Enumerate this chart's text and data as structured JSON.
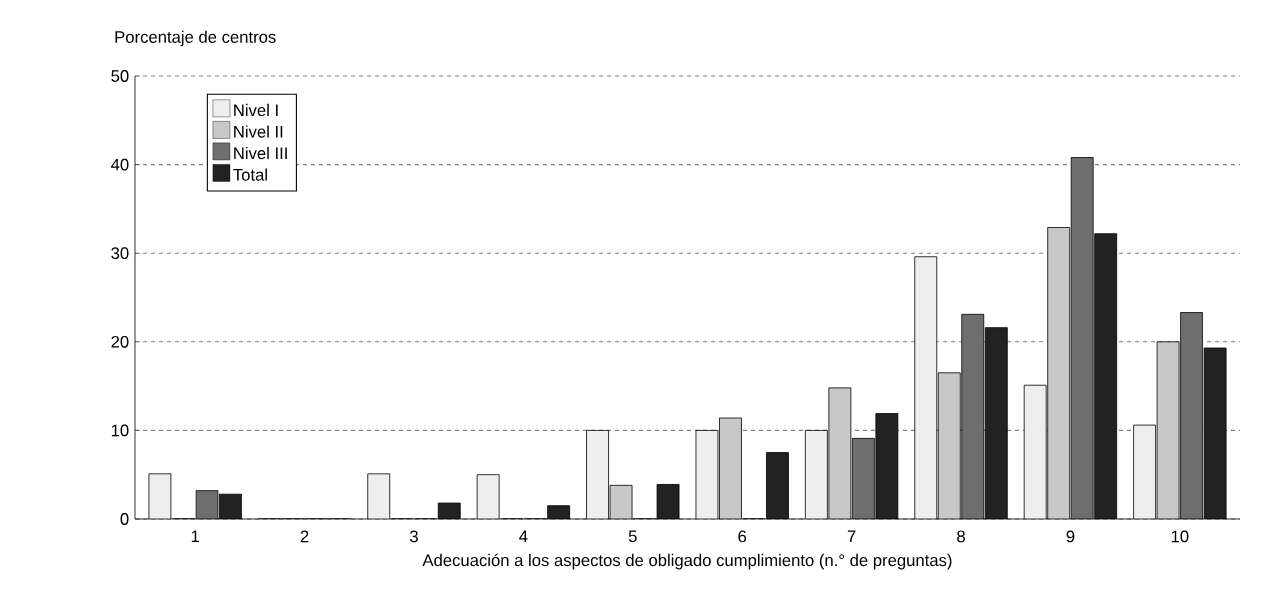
{
  "chart_data": {
    "type": "bar",
    "ylabel": "Porcentaje de centros",
    "xlabel": "Adecuación a los aspectos de obligado cumplimiento (n.° de preguntas)",
    "categories": [
      "1",
      "2",
      "3",
      "4",
      "5",
      "6",
      "7",
      "8",
      "9",
      "10"
    ],
    "series": [
      {
        "name": "Nivel I",
        "color": "#eeeeee",
        "values": [
          5.1,
          0,
          5.1,
          5,
          10,
          10,
          10,
          29.6,
          15.1,
          10.6
        ]
      },
      {
        "name": "Nivel II",
        "color": "#c8c8c8",
        "values": [
          0,
          0,
          0,
          0,
          3.8,
          11.4,
          14.8,
          16.5,
          32.9,
          20
        ]
      },
      {
        "name": "Nivel III",
        "color": "#6e6e6e",
        "values": [
          3.2,
          0,
          0,
          0,
          0,
          0,
          9.1,
          23.1,
          40.8,
          23.3
        ]
      },
      {
        "name": "Total",
        "color": "#222222",
        "values": [
          2.8,
          0,
          1.8,
          1.5,
          3.9,
          7.5,
          11.9,
          21.6,
          32.2,
          19.3
        ]
      }
    ],
    "ylim": [
      0,
      50
    ],
    "yticks": [
      0,
      10,
      20,
      30,
      40,
      50
    ],
    "grid": "y",
    "legend": "top left"
  }
}
